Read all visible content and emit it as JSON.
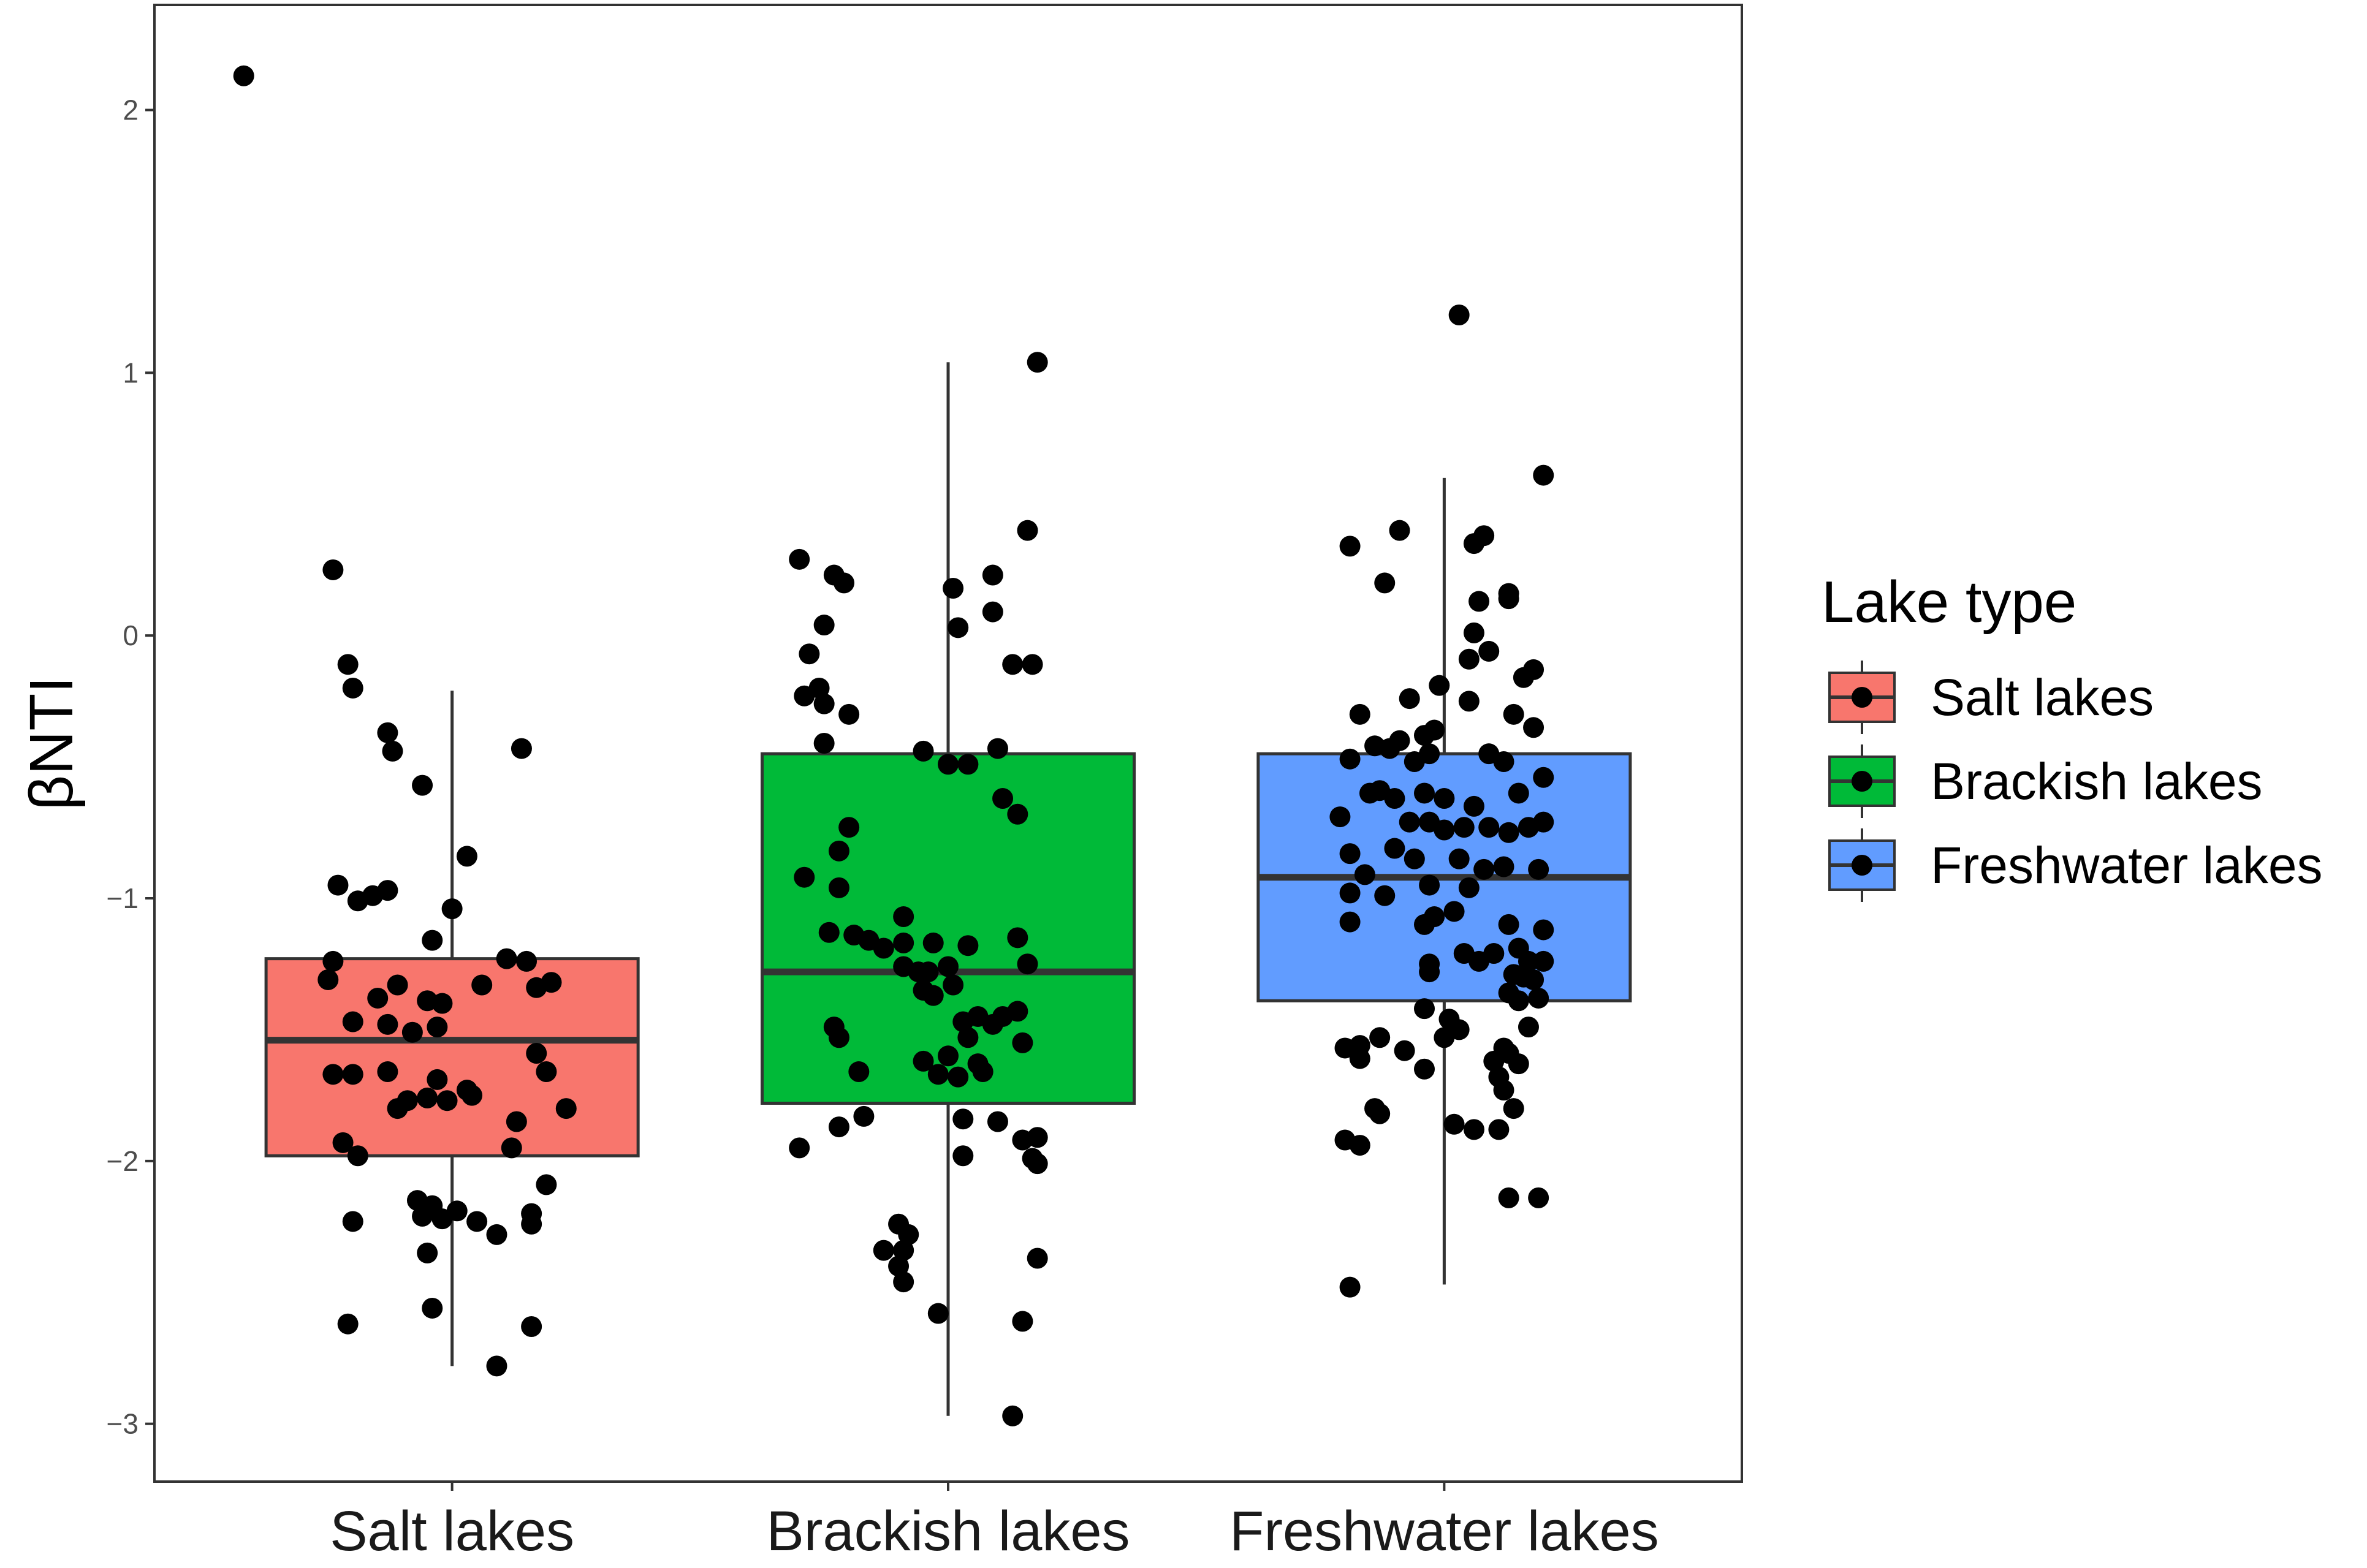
{
  "chart_data": {
    "type": "box",
    "ylabel": "βNTI",
    "xlabel": "",
    "ylim": [
      -3.22,
      2.4
    ],
    "y_ticks": [
      {
        "value": 2,
        "label": "2"
      },
      {
        "value": 1,
        "label": "1"
      },
      {
        "value": 0,
        "label": "0"
      },
      {
        "value": -1,
        "label": "−1"
      },
      {
        "value": -2,
        "label": "−2"
      },
      {
        "value": -3,
        "label": "−3"
      }
    ],
    "grid": false,
    "legend_position": "right",
    "legend_title": "Lake type",
    "categories": [
      "Salt lakes",
      "Brackish lakes",
      "Freshwater lakes"
    ],
    "series": [
      {
        "name": "Salt lakes",
        "color": "#F8766D",
        "box": {
          "whisker_low": -2.78,
          "q1": -1.98,
          "median": -1.54,
          "q3": -1.23,
          "whisker_high": -0.21
        },
        "points": [
          [
            -0.42,
            2.13
          ],
          [
            -0.24,
            0.25
          ],
          [
            -0.21,
            -0.11
          ],
          [
            -0.2,
            -0.2
          ],
          [
            -0.13,
            -0.37
          ],
          [
            -0.12,
            -0.44
          ],
          [
            -0.06,
            -0.57
          ],
          [
            0.14,
            -0.43
          ],
          [
            0.03,
            -0.84
          ],
          [
            -0.23,
            -0.95
          ],
          [
            -0.19,
            -1.01
          ],
          [
            -0.16,
            -0.99
          ],
          [
            -0.13,
            -0.97
          ],
          [
            0.0,
            -1.04
          ],
          [
            -0.04,
            -1.16
          ],
          [
            -0.24,
            -1.24
          ],
          [
            0.11,
            -1.23
          ],
          [
            0.15,
            -1.24
          ],
          [
            -0.25,
            -1.31
          ],
          [
            -0.11,
            -1.33
          ],
          [
            0.06,
            -1.33
          ],
          [
            -0.15,
            -1.38
          ],
          [
            -0.05,
            -1.39
          ],
          [
            -0.02,
            -1.4
          ],
          [
            0.17,
            -1.34
          ],
          [
            0.2,
            -1.32
          ],
          [
            -0.2,
            -1.47
          ],
          [
            -0.13,
            -1.48
          ],
          [
            -0.08,
            -1.51
          ],
          [
            -0.03,
            -1.49
          ],
          [
            0.17,
            -1.59
          ],
          [
            -0.24,
            -1.67
          ],
          [
            -0.2,
            -1.67
          ],
          [
            -0.13,
            -1.66
          ],
          [
            -0.03,
            -1.69
          ],
          [
            0.03,
            -1.73
          ],
          [
            0.19,
            -1.66
          ],
          [
            -0.09,
            -1.77
          ],
          [
            -0.05,
            -1.76
          ],
          [
            -0.01,
            -1.77
          ],
          [
            0.04,
            -1.75
          ],
          [
            -0.11,
            -1.8
          ],
          [
            0.23,
            -1.8
          ],
          [
            0.13,
            -1.85
          ],
          [
            -0.22,
            -1.93
          ],
          [
            0.12,
            -1.95
          ],
          [
            -0.19,
            -1.98
          ],
          [
            0.19,
            -2.09
          ],
          [
            -0.07,
            -2.15
          ],
          [
            -0.04,
            -2.17
          ],
          [
            0.01,
            -2.19
          ],
          [
            -0.06,
            -2.21
          ],
          [
            -0.02,
            -2.22
          ],
          [
            0.05,
            -2.23
          ],
          [
            -0.2,
            -2.23
          ],
          [
            0.16,
            -2.2
          ],
          [
            0.16,
            -2.24
          ],
          [
            0.09,
            -2.28
          ],
          [
            -0.05,
            -2.35
          ],
          [
            -0.04,
            -2.56
          ],
          [
            -0.21,
            -2.62
          ],
          [
            0.16,
            -2.63
          ],
          [
            0.09,
            -2.78
          ]
        ]
      },
      {
        "name": "Brackish lakes",
        "color": "#00BA38",
        "box": {
          "whisker_low": -2.97,
          "q1": -1.78,
          "median": -1.28,
          "q3": -0.45,
          "whisker_high": 1.04
        },
        "points": [
          [
            -0.3,
            0.29
          ],
          [
            -0.23,
            0.23
          ],
          [
            -0.21,
            0.2
          ],
          [
            0.01,
            0.18
          ],
          [
            0.09,
            0.23
          ],
          [
            0.16,
            0.4
          ],
          [
            0.18,
            1.04
          ],
          [
            -0.25,
            0.04
          ],
          [
            0.02,
            0.03
          ],
          [
            0.09,
            0.09
          ],
          [
            -0.28,
            -0.07
          ],
          [
            -0.29,
            -0.23
          ],
          [
            -0.26,
            -0.2
          ],
          [
            -0.25,
            -0.26
          ],
          [
            -0.2,
            -0.3
          ],
          [
            0.13,
            -0.11
          ],
          [
            0.17,
            -0.11
          ],
          [
            -0.25,
            -0.41
          ],
          [
            -0.05,
            -0.44
          ],
          [
            0.0,
            -0.49
          ],
          [
            0.04,
            -0.49
          ],
          [
            0.1,
            -0.43
          ],
          [
            0.11,
            -0.62
          ],
          [
            0.14,
            -0.68
          ],
          [
            -0.2,
            -0.73
          ],
          [
            -0.22,
            -0.82
          ],
          [
            -0.29,
            -0.92
          ],
          [
            -0.22,
            -0.96
          ],
          [
            -0.09,
            -1.07
          ],
          [
            -0.24,
            -1.13
          ],
          [
            -0.19,
            -1.14
          ],
          [
            -0.16,
            -1.16
          ],
          [
            -0.13,
            -1.19
          ],
          [
            -0.09,
            -1.17
          ],
          [
            -0.03,
            -1.17
          ],
          [
            0.04,
            -1.18
          ],
          [
            0.14,
            -1.15
          ],
          [
            -0.09,
            -1.26
          ],
          [
            -0.06,
            -1.28
          ],
          [
            -0.04,
            -1.28
          ],
          [
            0.0,
            -1.26
          ],
          [
            0.16,
            -1.25
          ],
          [
            -0.05,
            -1.35
          ],
          [
            -0.03,
            -1.37
          ],
          [
            0.01,
            -1.33
          ],
          [
            0.03,
            -1.47
          ],
          [
            0.06,
            -1.45
          ],
          [
            0.09,
            -1.48
          ],
          [
            0.11,
            -1.45
          ],
          [
            0.14,
            -1.43
          ],
          [
            0.15,
            -1.55
          ],
          [
            -0.23,
            -1.49
          ],
          [
            -0.22,
            -1.53
          ],
          [
            0.04,
            -1.53
          ],
          [
            0.0,
            -1.6
          ],
          [
            0.06,
            -1.63
          ],
          [
            -0.18,
            -1.66
          ],
          [
            -0.05,
            -1.62
          ],
          [
            -0.02,
            -1.67
          ],
          [
            0.02,
            -1.68
          ],
          [
            0.07,
            -1.66
          ],
          [
            -0.17,
            -1.83
          ],
          [
            -0.22,
            -1.87
          ],
          [
            0.03,
            -1.84
          ],
          [
            0.1,
            -1.85
          ],
          [
            0.15,
            -1.92
          ],
          [
            0.18,
            -1.91
          ],
          [
            0.17,
            -1.99
          ],
          [
            0.18,
            -2.01
          ],
          [
            -0.3,
            -1.95
          ],
          [
            0.03,
            -1.98
          ],
          [
            -0.1,
            -2.24
          ],
          [
            -0.08,
            -2.28
          ],
          [
            -0.09,
            -2.34
          ],
          [
            -0.13,
            -2.34
          ],
          [
            -0.1,
            -2.4
          ],
          [
            -0.09,
            -2.46
          ],
          [
            -0.02,
            -2.58
          ],
          [
            0.15,
            -2.61
          ],
          [
            0.18,
            -2.37
          ],
          [
            0.13,
            -2.97
          ]
        ]
      },
      {
        "name": "Freshwater lakes",
        "color": "#619CFF",
        "box": {
          "whisker_low": -2.47,
          "q1": -1.39,
          "median": -0.92,
          "q3": -0.45,
          "whisker_high": 0.6
        },
        "points": [
          [
            0.03,
            1.22
          ],
          [
            0.2,
            0.61
          ],
          [
            0.08,
            0.38
          ],
          [
            0.06,
            0.35
          ],
          [
            -0.19,
            0.34
          ],
          [
            -0.09,
            0.4
          ],
          [
            -0.12,
            0.2
          ],
          [
            0.13,
            0.16
          ],
          [
            0.13,
            0.14
          ],
          [
            0.07,
            0.13
          ],
          [
            0.06,
            0.01
          ],
          [
            0.09,
            -0.06
          ],
          [
            0.05,
            -0.09
          ],
          [
            0.18,
            -0.13
          ],
          [
            0.16,
            -0.16
          ],
          [
            -0.01,
            -0.19
          ],
          [
            -0.07,
            -0.24
          ],
          [
            -0.17,
            -0.3
          ],
          [
            0.05,
            -0.25
          ],
          [
            0.14,
            -0.3
          ],
          [
            0.18,
            -0.35
          ],
          [
            -0.04,
            -0.38
          ],
          [
            -0.02,
            -0.36
          ],
          [
            -0.09,
            -0.4
          ],
          [
            -0.11,
            -0.43
          ],
          [
            -0.14,
            -0.42
          ],
          [
            -0.19,
            -0.47
          ],
          [
            -0.03,
            -0.45
          ],
          [
            0.09,
            -0.45
          ],
          [
            0.12,
            -0.48
          ],
          [
            0.2,
            -0.54
          ],
          [
            -0.06,
            -0.48
          ],
          [
            -0.13,
            -0.59
          ],
          [
            -0.15,
            -0.6
          ],
          [
            -0.1,
            -0.62
          ],
          [
            -0.04,
            -0.6
          ],
          [
            0.0,
            -0.62
          ],
          [
            0.06,
            -0.65
          ],
          [
            0.15,
            -0.6
          ],
          [
            -0.21,
            -0.69
          ],
          [
            -0.07,
            -0.71
          ],
          [
            -0.03,
            -0.71
          ],
          [
            0.0,
            -0.74
          ],
          [
            0.04,
            -0.73
          ],
          [
            0.09,
            -0.73
          ],
          [
            0.13,
            -0.75
          ],
          [
            0.17,
            -0.73
          ],
          [
            0.2,
            -0.71
          ],
          [
            -0.19,
            -0.83
          ],
          [
            -0.1,
            -0.81
          ],
          [
            -0.06,
            -0.85
          ],
          [
            0.03,
            -0.85
          ],
          [
            0.08,
            -0.89
          ],
          [
            0.12,
            -0.88
          ],
          [
            0.19,
            -0.89
          ],
          [
            -0.16,
            -0.91
          ],
          [
            -0.19,
            -0.98
          ],
          [
            -0.12,
            -0.99
          ],
          [
            -0.03,
            -0.95
          ],
          [
            0.05,
            -0.96
          ],
          [
            -0.04,
            -1.1
          ],
          [
            -0.02,
            -1.07
          ],
          [
            0.02,
            -1.05
          ],
          [
            0.13,
            -1.1
          ],
          [
            0.2,
            -1.12
          ],
          [
            -0.19,
            -1.09
          ],
          [
            0.15,
            -1.19
          ],
          [
            0.1,
            -1.21
          ],
          [
            0.04,
            -1.21
          ],
          [
            0.07,
            -1.24
          ],
          [
            0.17,
            -1.24
          ],
          [
            0.2,
            -1.24
          ],
          [
            -0.03,
            -1.25
          ],
          [
            -0.03,
            -1.28
          ],
          [
            0.14,
            -1.29
          ],
          [
            0.16,
            -1.3
          ],
          [
            0.18,
            -1.31
          ],
          [
            0.13,
            -1.36
          ],
          [
            0.15,
            -1.39
          ],
          [
            0.19,
            -1.38
          ],
          [
            -0.04,
            -1.42
          ],
          [
            0.01,
            -1.46
          ],
          [
            0.03,
            -1.5
          ],
          [
            0.0,
            -1.53
          ],
          [
            0.17,
            -1.49
          ],
          [
            -0.13,
            -1.53
          ],
          [
            -0.17,
            -1.56
          ],
          [
            -0.2,
            -1.57
          ],
          [
            -0.17,
            -1.61
          ],
          [
            -0.08,
            -1.58
          ],
          [
            0.12,
            -1.57
          ],
          [
            0.13,
            -1.59
          ],
          [
            0.1,
            -1.62
          ],
          [
            0.15,
            -1.63
          ],
          [
            -0.04,
            -1.65
          ],
          [
            0.11,
            -1.68
          ],
          [
            0.12,
            -1.73
          ],
          [
            0.14,
            -1.8
          ],
          [
            -0.14,
            -1.8
          ],
          [
            -0.13,
            -1.82
          ],
          [
            0.02,
            -1.86
          ],
          [
            0.06,
            -1.88
          ],
          [
            0.11,
            -1.88
          ],
          [
            -0.2,
            -1.92
          ],
          [
            -0.17,
            -1.94
          ],
          [
            0.13,
            -2.14
          ],
          [
            0.19,
            -2.14
          ],
          [
            -0.19,
            -2.48
          ]
        ]
      }
    ]
  }
}
